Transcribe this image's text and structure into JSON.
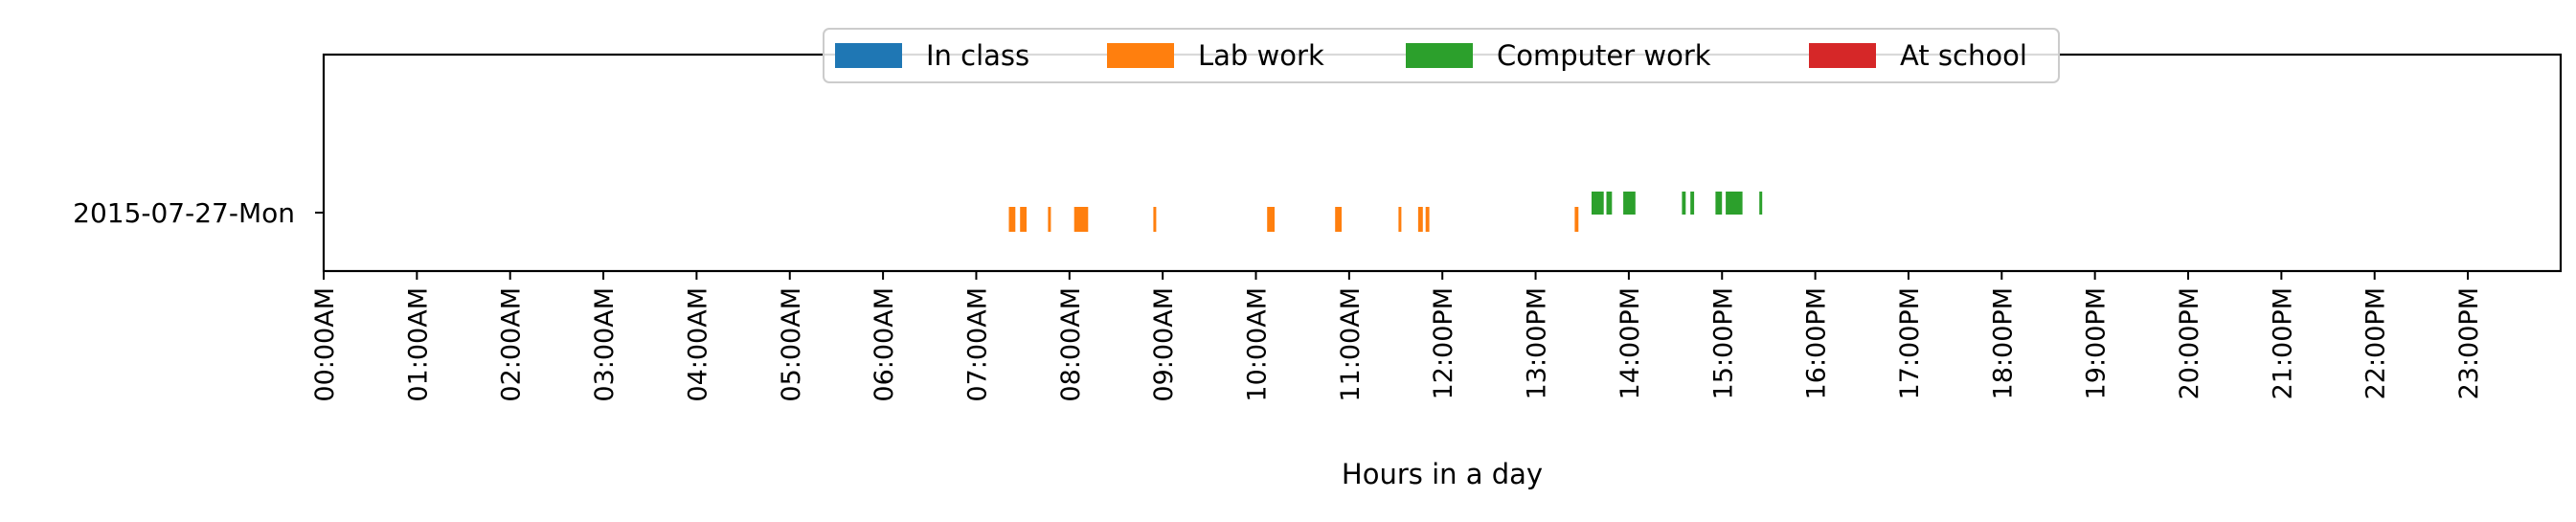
{
  "chart_data": {
    "type": "timeline",
    "title": "",
    "xlabel": "Hours in a day",
    "ylabel": "",
    "xlim": [
      0,
      24
    ],
    "grid": false,
    "legend_position": "top-center",
    "categories": [
      "2015-07-27-Mon"
    ],
    "x_ticks": [
      "00:00AM",
      "01:00AM",
      "02:00AM",
      "03:00AM",
      "04:00AM",
      "05:00AM",
      "06:00AM",
      "07:00AM",
      "08:00AM",
      "09:00AM",
      "10:00AM",
      "11:00AM",
      "12:00PM",
      "13:00PM",
      "14:00PM",
      "15:00PM",
      "16:00PM",
      "17:00PM",
      "18:00PM",
      "19:00PM",
      "20:00PM",
      "21:00PM",
      "22:00PM",
      "23:00PM"
    ],
    "series": [
      {
        "name": "In class",
        "color": "#1f77b4",
        "intervals": []
      },
      {
        "name": "Lab work",
        "color": "#ff7f0e",
        "intervals": [
          [
            7.35,
            7.42
          ],
          [
            7.47,
            7.54
          ],
          [
            7.77,
            7.8
          ],
          [
            8.05,
            8.2
          ],
          [
            8.9,
            8.93
          ],
          [
            10.12,
            10.2
          ],
          [
            10.85,
            10.92
          ],
          [
            11.53,
            11.56
          ],
          [
            11.74,
            11.79
          ],
          [
            11.82,
            11.86
          ],
          [
            13.42,
            13.46
          ]
        ]
      },
      {
        "name": "Computer work",
        "color": "#2ca02c",
        "intervals": [
          [
            13.6,
            13.73
          ],
          [
            13.76,
            13.82
          ],
          [
            13.94,
            14.07
          ],
          [
            14.57,
            14.61
          ],
          [
            14.66,
            14.7
          ],
          [
            14.93,
            15.0
          ],
          [
            15.04,
            15.22
          ],
          [
            15.4,
            15.43
          ]
        ]
      },
      {
        "name": "At school",
        "color": "#d62728",
        "intervals": []
      }
    ]
  }
}
